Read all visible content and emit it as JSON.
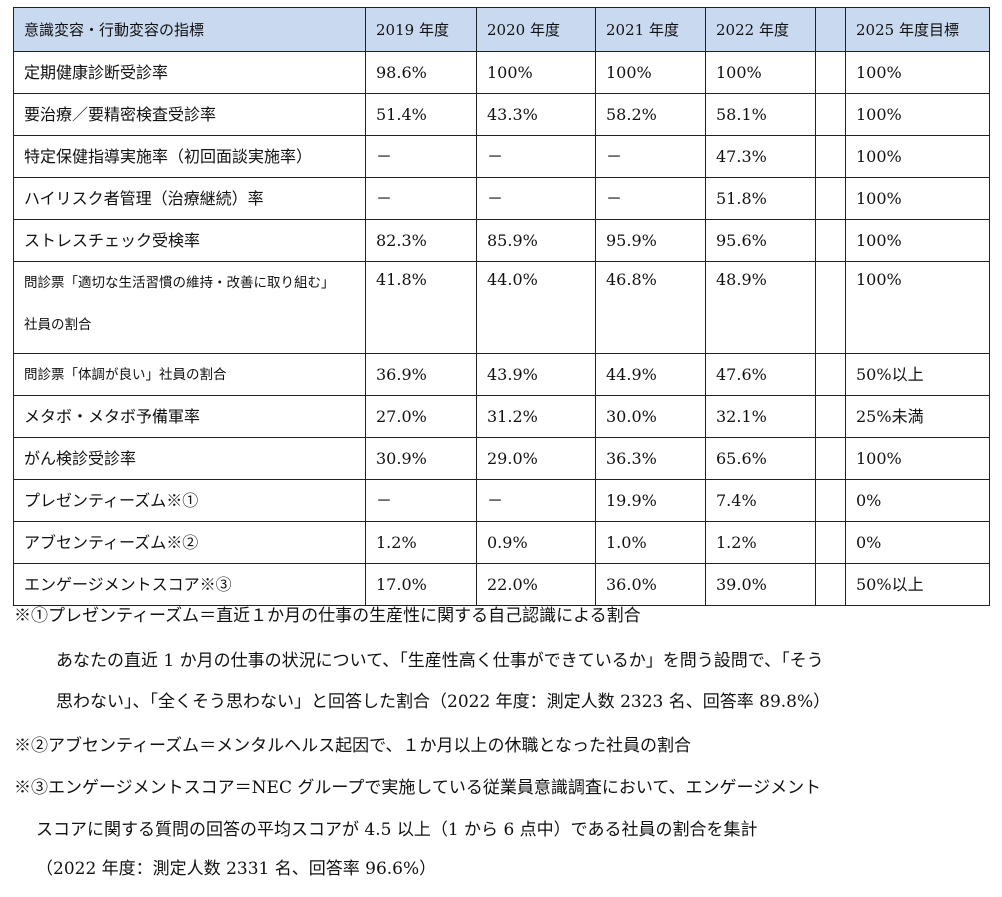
{
  "table": {
    "headers": [
      "意識変容・行動変容の指標",
      "2019 年度",
      "2020 年度",
      "2021 年度",
      "2022 年度",
      "",
      "2025 年度目標"
    ],
    "rows": [
      {
        "name": "定期健康診断受診率",
        "v2019": "98.6%",
        "v2020": "100%",
        "v2021": "100%",
        "v2022": "100%",
        "blank": "",
        "target": "100%"
      },
      {
        "name": "要治療／要精密検査受診率",
        "v2019": "51.4%",
        "v2020": "43.3%",
        "v2021": "58.2%",
        "v2022": "58.1%",
        "blank": "",
        "target": "100%"
      },
      {
        "name": "特定保健指導実施率（初回面談実施率）",
        "v2019": "－",
        "v2020": "－",
        "v2021": "－",
        "v2022": "47.3%",
        "blank": "",
        "target": "100%"
      },
      {
        "name": "ハイリスク者管理（治療継続）率",
        "v2019": "－",
        "v2020": "－",
        "v2021": "－",
        "v2022": "51.8%",
        "blank": "",
        "target": "100%"
      },
      {
        "name": "ストレスチェック受検率",
        "v2019": "82.3%",
        "v2020": "85.9%",
        "v2021": "95.9%",
        "v2022": "95.6%",
        "blank": "",
        "target": "100%"
      },
      {
        "name_line1": "問診票「適切な生活習慣の維持・改善に取り組む」",
        "name_line2": "社員の割合",
        "v2019": "41.8%",
        "v2020": "44.0%",
        "v2021": "46.8%",
        "v2022": "48.9%",
        "blank": "",
        "target": "100%"
      },
      {
        "name": "問診票「体調が良い」社員の割合",
        "v2019": "36.9%",
        "v2020": "43.9%",
        "v2021": "44.9%",
        "v2022": "47.6%",
        "blank": "",
        "target": "50%以上"
      },
      {
        "name": "メタボ・メタボ予備軍率",
        "v2019": "27.0%",
        "v2020": "31.2%",
        "v2021": "30.0%",
        "v2022": "32.1%",
        "blank": "",
        "target": "25%未満"
      },
      {
        "name": "がん検診受診率",
        "v2019": "30.9%",
        "v2020": "29.0%",
        "v2021": "36.3%",
        "v2022": "65.6%",
        "blank": "",
        "target": "100%"
      },
      {
        "name": "プレゼンティーズム※①",
        "v2019": "－",
        "v2020": "－",
        "v2021": "19.9%",
        "v2022": "7.4%",
        "blank": "",
        "target": "0%"
      },
      {
        "name": "アブセンティーズム※②",
        "v2019": "1.2%",
        "v2020": "0.9%",
        "v2021": "1.0%",
        "v2022": "1.2%",
        "blank": "",
        "target": "0%"
      },
      {
        "name": "エンゲージメントスコア※③",
        "v2019": "17.0%",
        "v2020": "22.0%",
        "v2021": "36.0%",
        "v2022": "39.0%",
        "blank": "",
        "target": "50%以上"
      }
    ]
  },
  "notes": {
    "n1": "※①プレゼンティーズム＝直近１か月の仕事の生産性に関する自己認識による割合",
    "n1a": "あなたの直近 1 か月の仕事の状況について、「生産性高く仕事ができているか」を問う設問で、「そう",
    "n1b": "思わない」、「全くそう思わない」と回答した割合（2022 年度：測定人数 2323 名、回答率 89.8%）",
    "n2": "※②アブセンティーズム＝メンタルヘルス起因で、１か月以上の休職となった社員の割合",
    "n3": "※③エンゲージメントスコア＝NEC グループで実施している従業員意識調査において、エンゲージメント",
    "n3a": "スコアに関する質問の回答の平均スコアが 4.5 以上（1 から 6 点中）である社員の割合を集計",
    "n3b": "（2022 年度：測定人数 2331 名、回答率 96.6%）"
  }
}
